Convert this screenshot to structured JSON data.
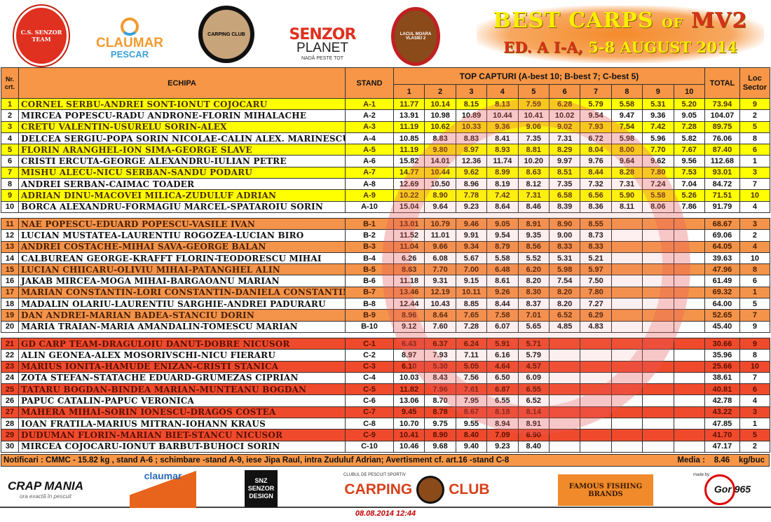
{
  "header": {
    "logos": [
      "C.S. SENZOR TEAM",
      "CLAUMAR",
      "PESCAR",
      "CARPING CLUB",
      "SENZOR",
      "PLANET",
      "NADĂ PESTE TOT",
      "LACUL MOARA VLASIEI 2"
    ],
    "title_l1": "BEST CARPS ",
    "title_of": "OF",
    "title_mv": " MV2",
    "title_l2_red": "ED. A I-A, ",
    "title_l2": "5-8 AUGUST 2014"
  },
  "table": {
    "col_nr": "Nr. crt.",
    "col_team": "ECHIPA",
    "col_stand": "STAND",
    "col_top": "TOP CAPTURI (A-best 10; B-best 7; C-best 5)",
    "catch_cols": [
      "1",
      "2",
      "3",
      "4",
      "5",
      "6",
      "7",
      "8",
      "9",
      "10"
    ],
    "col_total": "TOTAL",
    "col_loc": "Loc Sector",
    "colors": {
      "A": "#ffff00",
      "B": "#f4934a",
      "C": "#f04a2c",
      "header": "#f79646"
    },
    "sections": [
      {
        "sector": "A",
        "rows": [
          [
            "1",
            "CORNEL SERBU-ANDREI SONT-IONUT COJOCARU",
            "A-1",
            [
              "11.77",
              "10.14",
              "8.15",
              "8.13",
              "7.59",
              "6.28",
              "5.79",
              "5.58",
              "5.31",
              "5.20"
            ],
            "73.94",
            "9"
          ],
          [
            "2",
            "MIRCEA POPESCU-RADU ANDRONE-FLORIN MIHALACHE",
            "A-2",
            [
              "13.91",
              "10.98",
              "10.89",
              "10.44",
              "10.41",
              "10.02",
              "9.54",
              "9.47",
              "9.36",
              "9.05"
            ],
            "104.07",
            "2"
          ],
          [
            "3",
            "CRETU VALENTIN-USURELU SORIN-ALEX",
            "A-3",
            [
              "11.19",
              "10.62",
              "10.33",
              "9.36",
              "9.06",
              "9.02",
              "7.93",
              "7.54",
              "7.42",
              "7.28"
            ],
            "89.75",
            "5"
          ],
          [
            "4",
            "DELCEA SERGIU-POPA SORIN NICOLAE-CALIN ALEX. MARINESCU",
            "A-4",
            [
              "10.85",
              "8.83",
              "8.83",
              "8.41",
              "7.35",
              "7.31",
              "6.72",
              "5.98",
              "5.96",
              "5.82"
            ],
            "76.06",
            "8"
          ],
          [
            "5",
            "FLORIN ARANGHEL-ION SIMA-GEORGE SLAVE",
            "A-5",
            [
              "11.19",
              "9.80",
              "8.97",
              "8.93",
              "8.81",
              "8.29",
              "8.04",
              "8.00",
              "7.70",
              "7.67"
            ],
            "87.40",
            "6"
          ],
          [
            "6",
            "CRISTI ERCUTA-GEORGE ALEXANDRU-IULIAN PETRE",
            "A-6",
            [
              "15.82",
              "14.01",
              "12.36",
              "11.74",
              "10.20",
              "9.97",
              "9.76",
              "9.64",
              "9.62",
              "9.56"
            ],
            "112.68",
            "1"
          ],
          [
            "7",
            "MISHU ALECU-NICU SERBAN-SANDU PODARU",
            "A-7",
            [
              "14.77",
              "10.44",
              "9.62",
              "8.99",
              "8.63",
              "8.51",
              "8.44",
              "8.28",
              "7.80",
              "7.53"
            ],
            "93.01",
            "3"
          ],
          [
            "8",
            "ANDREI SERBAN-CAIMAC TOADER",
            "A-8",
            [
              "12.69",
              "10.50",
              "8.96",
              "8.19",
              "8.12",
              "7.35",
              "7.32",
              "7.31",
              "7.24",
              "7.04"
            ],
            "84.72",
            "7"
          ],
          [
            "9",
            "ADRIAN DINU-MACOVEI MILICA-ZUDULUF ADRIAN",
            "A-9",
            [
              "10.22",
              "8.90",
              "7.78",
              "7.42",
              "7.31",
              "6.58",
              "6.56",
              "5.90",
              "5.58",
              "5.26"
            ],
            "71.51",
            "10"
          ],
          [
            "10",
            "BORCA ALEXANDRU-FORMAGIU MARCEL-SPATAROIU SORIN",
            "A-10",
            [
              "15.04",
              "9.64",
              "9.23",
              "8.64",
              "8.46",
              "8.39",
              "8.36",
              "8.11",
              "8.06",
              "7.86"
            ],
            "91.79",
            "4"
          ]
        ]
      },
      {
        "sector": "B",
        "rows": [
          [
            "11",
            "NAE POPESCU-EDUARD POPESCU-VASILE IVAN",
            "B-1",
            [
              "13.01",
              "10.79",
              "9.46",
              "9.05",
              "8.91",
              "8.90",
              "8.55",
              "",
              "",
              ""
            ],
            "68.67",
            "3"
          ],
          [
            "12",
            "LUCIAN MUSTATEA-LAURENTIU ROGOZEA-LUCIAN BIRO",
            "B-2",
            [
              "11.52",
              "11.01",
              "9.91",
              "9.54",
              "9.35",
              "9.00",
              "8.73",
              "",
              "",
              ""
            ],
            "69.06",
            "2"
          ],
          [
            "13",
            "ANDREI COSTACHE-MIHAI SAVA-GEORGE BALAN",
            "B-3",
            [
              "11.04",
              "9.66",
              "9.34",
              "8.79",
              "8.56",
              "8.33",
              "8.33",
              "",
              "",
              ""
            ],
            "64.05",
            "4"
          ],
          [
            "14",
            "CALBUREAN GEORGE-KRAFFT FLORIN-TEODORESCU MIHAI",
            "B-4",
            [
              "6.26",
              "6.08",
              "5.67",
              "5.58",
              "5.52",
              "5.31",
              "5.21",
              "",
              "",
              ""
            ],
            "39.63",
            "10"
          ],
          [
            "15",
            "LUCIAN CHIICARU-OLIVIU MIHAI-PATANGHEL ALIN",
            "B-5",
            [
              "8.63",
              "7.70",
              "7.00",
              "6.48",
              "6.20",
              "5.98",
              "5.97",
              "",
              "",
              ""
            ],
            "47.96",
            "8"
          ],
          [
            "16",
            "JAKAB MIRCEA-MOGA MIHAI-BARGAOANU MARIAN",
            "B-6",
            [
              "11.18",
              "9.31",
              "9.15",
              "8.61",
              "8.20",
              "7.54",
              "7.50",
              "",
              "",
              ""
            ],
            "61.49",
            "6"
          ],
          [
            "17",
            "MARIAN CONSTANTIN-LORI CONSTANTIN-DANIELA CONSTANTIN",
            "B-7",
            [
              "13.46",
              "12.19",
              "10.11",
              "9.26",
              "8.30",
              "8.20",
              "7.80",
              "",
              "",
              ""
            ],
            "69.32",
            "1"
          ],
          [
            "18",
            "MADALIN OLARIU-LAURENTIU SARGHIE-ANDREI PADURARU",
            "B-8",
            [
              "12.44",
              "10.43",
              "8.85",
              "8.44",
              "8.37",
              "8.20",
              "7.27",
              "",
              "",
              ""
            ],
            "64.00",
            "5"
          ],
          [
            "19",
            "DAN ANDREI-MARIAN BADEA-STANCIU DORIN",
            "B-9",
            [
              "8.96",
              "8.64",
              "7.65",
              "7.58",
              "7.01",
              "6.52",
              "6.29",
              "",
              "",
              ""
            ],
            "52.65",
            "7"
          ],
          [
            "20",
            "MARIA TRAIAN-MARIA AMANDALIN-TOMESCU MARIAN",
            "B-10",
            [
              "9.12",
              "7.60",
              "7.28",
              "6.07",
              "5.65",
              "4.85",
              "4.83",
              "",
              "",
              ""
            ],
            "45.40",
            "9"
          ]
        ]
      },
      {
        "sector": "C",
        "rows": [
          [
            "21",
            "GD CARP TEAM-DRAGULOIU DANUT-DOBRE NICUSOR",
            "C-1",
            [
              "6.43",
              "6.37",
              "6.24",
              "5.91",
              "5.71",
              "",
              "",
              "",
              "",
              ""
            ],
            "30.66",
            "9"
          ],
          [
            "22",
            "ALIN GEONEA-ALEX MOSORIVSCHI-NICU FIERARU",
            "C-2",
            [
              "8.97",
              "7.93",
              "7.11",
              "6.16",
              "5.79",
              "",
              "",
              "",
              "",
              ""
            ],
            "35.96",
            "8"
          ],
          [
            "23",
            "MARIUS IONITA-HAMUDE ENIZAN-CRISTI STANICA",
            "C-3",
            [
              "6.10",
              "5.30",
              "5.05",
              "4.64",
              "4.57",
              "",
              "",
              "",
              "",
              ""
            ],
            "25.66",
            "10"
          ],
          [
            "24",
            "ZOTA STEFAN-STATACHE EDUARD-GRUMEZAS CIPRIAN",
            "C-4",
            [
              "10.03",
              "8.43",
              "7.56",
              "6.50",
              "6.09",
              "",
              "",
              "",
              "",
              ""
            ],
            "38.61",
            "7"
          ],
          [
            "25",
            "TATARU BOGDAN-BINDEA MARIAN-MUNTEANU BOGDAN",
            "C-5",
            [
              "11.82",
              "7.96",
              "7.61",
              "6.87",
              "6.55",
              "",
              "",
              "",
              "",
              ""
            ],
            "40.81",
            "6"
          ],
          [
            "26",
            "PAPUC CATALIN-PAPUC VERONICA",
            "C-6",
            [
              "13.06",
              "8.70",
              "7.95",
              "6.55",
              "6.52",
              "",
              "",
              "",
              "",
              ""
            ],
            "42.78",
            "4"
          ],
          [
            "27",
            "MAHERA MIHAI-SORIN IONESCU-DRAGOS COSTEA",
            "C-7",
            [
              "9.45",
              "8.78",
              "8.67",
              "8.18",
              "8.14",
              "",
              "",
              "",
              "",
              ""
            ],
            "43.22",
            "3"
          ],
          [
            "28",
            "IOAN FRATILA-MARIUS MITRAN-IOHANN KRAUS",
            "C-8",
            [
              "10.70",
              "9.75",
              "9.55",
              "8.94",
              "8.91",
              "",
              "",
              "",
              "",
              ""
            ],
            "47.85",
            "1"
          ],
          [
            "29",
            "DUDUMAN FLORIN-MARIAN BIET-STANCU NICUSOR",
            "C-9",
            [
              "10.41",
              "8.90",
              "8.40",
              "7.09",
              "6.90",
              "",
              "",
              "",
              "",
              ""
            ],
            "41.70",
            "5"
          ],
          [
            "30",
            "MIRCEA COJOCARU-IONUT BARBUT-BUHOCI SORIN",
            "C-10",
            [
              "10.46",
              "9.68",
              "9.40",
              "9.23",
              "8.40",
              "",
              "",
              "",
              "",
              ""
            ],
            "47.17",
            "2"
          ]
        ]
      }
    ]
  },
  "notif": {
    "text": "Notificari : CMMC -  15.82 kg , stand A-6 ; schimbare -stand A-9, iese Jipa Raul, intra Zuduluf Adrian; Avertisment cf. art.16 -stand C-8",
    "media_label": "Media :",
    "media_value": "8.46",
    "media_unit": "kg/buc"
  },
  "footer": {
    "logos": [
      "CRAP MANIA",
      "ora exactă în pescuit",
      "claumar",
      "SNZ SENZOR DESIGN",
      "CLUBUL DE PESCUIT SPORTIV",
      "CARPING",
      "CLUB",
      "FAMOUS FISHING BRANDS",
      "made by",
      "Gor 965"
    ],
    "date": "08.08.2014 12:44"
  }
}
